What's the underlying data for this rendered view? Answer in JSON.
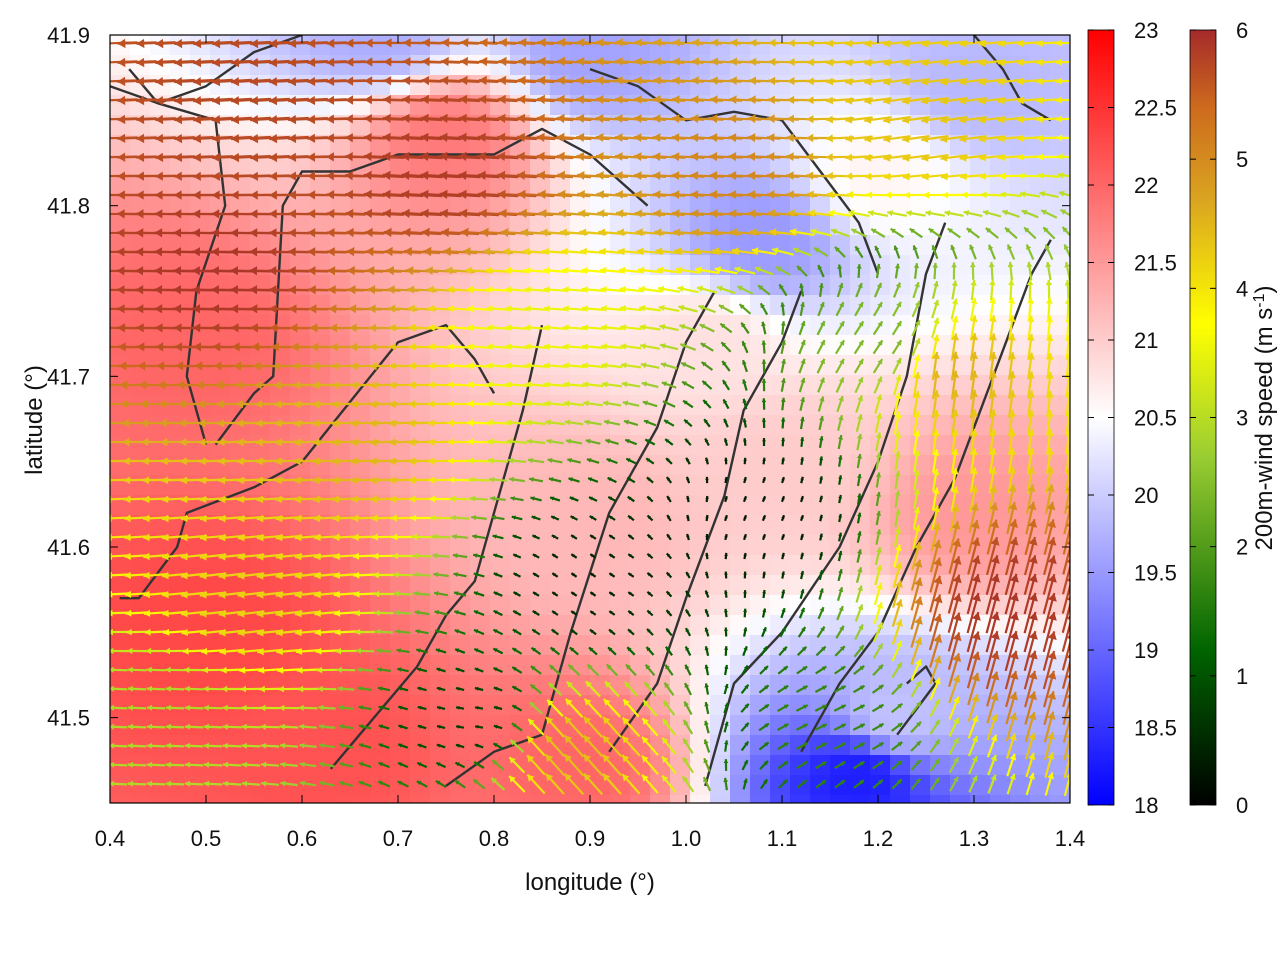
{
  "chart_data": {
    "type": "heatmap",
    "title": "",
    "xlabel": "longitude (°)",
    "ylabel": "latitude (°)",
    "xlim": [
      0.4,
      1.4
    ],
    "ylim": [
      41.45,
      41.9
    ],
    "x_ticks": [
      "0.4",
      "0.5",
      "0.6",
      "0.7",
      "0.8",
      "0.9",
      "1.0",
      "1.1",
      "1.2",
      "1.3",
      "1.4"
    ],
    "y_ticks": [
      "41.5",
      "41.6",
      "41.7",
      "41.8",
      "41.9"
    ],
    "grid": false,
    "legend": "none",
    "temperature_colorbar": {
      "range": [
        18,
        23
      ],
      "ticks": [
        "18",
        "18.5",
        "19",
        "19.5",
        "20",
        "20.5",
        "21",
        "21.5",
        "22",
        "22.5",
        "23"
      ],
      "colors": [
        "#0000ff",
        "#ffffff",
        "#ff0000"
      ]
    },
    "wind_colorbar": {
      "label": "200m-wind speed (m s",
      "label_sup": "-1",
      "label_end": ")",
      "range": [
        0,
        6
      ],
      "ticks": [
        "0",
        "1",
        "2",
        "3",
        "4",
        "5",
        "6"
      ],
      "colors": [
        "#000000",
        "#006400",
        "#9acd32",
        "#ffff00",
        "#daa520",
        "#cd6a1e",
        "#a52a2a"
      ]
    },
    "temperature_regions": [
      {
        "lon": 0.48,
        "lat": 41.72,
        "value": 22.0
      },
      {
        "lon": 0.5,
        "lat": 41.55,
        "value": 22.3
      },
      {
        "lon": 0.62,
        "lat": 41.48,
        "value": 22.2
      },
      {
        "lon": 0.75,
        "lat": 41.84,
        "value": 21.8
      },
      {
        "lon": 0.9,
        "lat": 41.62,
        "value": 21.2
      },
      {
        "lon": 0.88,
        "lat": 41.47,
        "value": 22.0
      },
      {
        "lon": 1.1,
        "lat": 41.65,
        "value": 21.0
      },
      {
        "lon": 1.3,
        "lat": 41.62,
        "value": 21.5
      },
      {
        "lon": 1.2,
        "lat": 41.82,
        "value": 20.6
      },
      {
        "lon": 1.08,
        "lat": 41.78,
        "value": 19.5
      },
      {
        "lon": 1.18,
        "lat": 41.465,
        "value": 18.3
      },
      {
        "lon": 0.9,
        "lat": 41.89,
        "value": 19.6
      },
      {
        "lon": 0.68,
        "lat": 41.9,
        "value": 19.7
      },
      {
        "lon": 1.3,
        "lat": 41.87,
        "value": 19.8
      },
      {
        "lon": 1.22,
        "lat": 41.5,
        "value": 19.9
      },
      {
        "lon": 1.02,
        "lat": 41.72,
        "value": 20.8
      }
    ],
    "wind_regions": [
      {
        "lon": 0.52,
        "lat": 41.76,
        "u": -5.8,
        "v": 0.1
      },
      {
        "lon": 0.75,
        "lat": 41.82,
        "u": -5.7,
        "v": 0.3
      },
      {
        "lon": 0.55,
        "lat": 41.86,
        "u": -5.5,
        "v": -0.3
      },
      {
        "lon": 0.55,
        "lat": 41.57,
        "u": -3.5,
        "v": -0.4
      },
      {
        "lon": 0.65,
        "lat": 41.66,
        "u": -3.8,
        "v": -0.2
      },
      {
        "lon": 0.45,
        "lat": 41.5,
        "u": -2.2,
        "v": 0.1
      },
      {
        "lon": 1.05,
        "lat": 41.82,
        "u": -4.5,
        "v": 0.2
      },
      {
        "lon": 1.25,
        "lat": 41.85,
        "u": -3.6,
        "v": -0.5
      },
      {
        "lon": 0.85,
        "lat": 41.73,
        "u": -2.8,
        "v": 0.2
      },
      {
        "lon": 0.9,
        "lat": 41.58,
        "u": -0.3,
        "v": 0.2
      },
      {
        "lon": 1.08,
        "lat": 41.62,
        "u": 0.1,
        "v": 0.25
      },
      {
        "lon": 0.78,
        "lat": 41.5,
        "u": -0.6,
        "v": 0.1
      },
      {
        "lon": 1.15,
        "lat": 41.5,
        "u": 1.2,
        "v": 0.6
      },
      {
        "lon": 1.33,
        "lat": 41.56,
        "u": 1.5,
        "v": 5.6
      },
      {
        "lon": 1.28,
        "lat": 41.7,
        "u": 0.5,
        "v": 3.8
      },
      {
        "lon": 0.88,
        "lat": 41.48,
        "u": -2.5,
        "v": 2.8
      },
      {
        "lon": 1.2,
        "lat": 41.72,
        "u": 1.0,
        "v": 1.5
      }
    ],
    "coastline_paths": [
      [
        [
          0.41,
          41.57
        ],
        [
          0.43,
          41.57
        ],
        [
          0.47,
          41.6
        ],
        [
          0.48,
          41.62
        ],
        [
          0.55,
          41.635
        ],
        [
          0.6,
          41.65
        ],
        [
          0.65,
          41.685
        ],
        [
          0.7,
          41.72
        ],
        [
          0.75,
          41.73
        ],
        [
          0.78,
          41.71
        ],
        [
          0.8,
          41.69
        ]
      ],
      [
        [
          0.51,
          41.66
        ],
        [
          0.55,
          41.69
        ],
        [
          0.57,
          41.7
        ],
        [
          0.58,
          41.8
        ],
        [
          0.6,
          41.82
        ],
        [
          0.65,
          41.82
        ],
        [
          0.7,
          41.83
        ],
        [
          0.8,
          41.83
        ],
        [
          0.85,
          41.845
        ],
        [
          0.9,
          41.83
        ],
        [
          0.96,
          41.8
        ]
      ],
      [
        [
          0.5,
          41.66
        ],
        [
          0.48,
          41.7
        ],
        [
          0.49,
          41.75
        ],
        [
          0.52,
          41.8
        ],
        [
          0.51,
          41.85
        ],
        [
          0.45,
          41.86
        ],
        [
          0.42,
          41.88
        ]
      ],
      [
        [
          0.63,
          41.47
        ],
        [
          0.66,
          41.49
        ],
        [
          0.72,
          41.53
        ],
        [
          0.75,
          41.56
        ],
        [
          0.78,
          41.58
        ],
        [
          0.8,
          41.62
        ],
        [
          0.83,
          41.68
        ],
        [
          0.85,
          41.73
        ]
      ],
      [
        [
          0.75,
          41.46
        ],
        [
          0.8,
          41.48
        ],
        [
          0.85,
          41.49
        ],
        [
          0.88,
          41.55
        ],
        [
          0.92,
          41.62
        ],
        [
          0.97,
          41.67
        ],
        [
          1.0,
          41.72
        ],
        [
          1.03,
          41.75
        ]
      ],
      [
        [
          0.92,
          41.48
        ],
        [
          0.97,
          41.52
        ],
        [
          1.0,
          41.57
        ],
        [
          1.04,
          41.63
        ],
        [
          1.06,
          41.68
        ],
        [
          1.1,
          41.72
        ],
        [
          1.12,
          41.75
        ]
      ],
      [
        [
          1.02,
          41.46
        ],
        [
          1.05,
          41.52
        ],
        [
          1.1,
          41.55
        ],
        [
          1.16,
          41.6
        ],
        [
          1.2,
          41.65
        ],
        [
          1.23,
          41.7
        ],
        [
          1.25,
          41.76
        ],
        [
          1.27,
          41.79
        ]
      ],
      [
        [
          1.12,
          41.48
        ],
        [
          1.16,
          41.52
        ],
        [
          1.2,
          41.55
        ],
        [
          1.24,
          41.6
        ],
        [
          1.28,
          41.64
        ],
        [
          1.32,
          41.7
        ],
        [
          1.36,
          41.76
        ],
        [
          1.38,
          41.78
        ]
      ],
      [
        [
          1.22,
          41.49
        ],
        [
          1.24,
          41.505
        ],
        [
          1.26,
          41.52
        ],
        [
          1.25,
          41.53
        ],
        [
          1.23,
          41.52
        ]
      ],
      [
        [
          0.9,
          41.88
        ],
        [
          0.95,
          41.87
        ],
        [
          1.0,
          41.85
        ],
        [
          1.05,
          41.855
        ],
        [
          1.1,
          41.85
        ],
        [
          1.14,
          41.82
        ],
        [
          1.18,
          41.79
        ],
        [
          1.2,
          41.76
        ]
      ],
      [
        [
          0.4,
          41.87
        ],
        [
          0.45,
          41.86
        ],
        [
          0.5,
          41.87
        ],
        [
          0.55,
          41.89
        ],
        [
          0.6,
          41.9
        ]
      ],
      [
        [
          1.3,
          41.9
        ],
        [
          1.33,
          41.88
        ],
        [
          1.35,
          41.86
        ],
        [
          1.38,
          41.85
        ]
      ]
    ]
  }
}
